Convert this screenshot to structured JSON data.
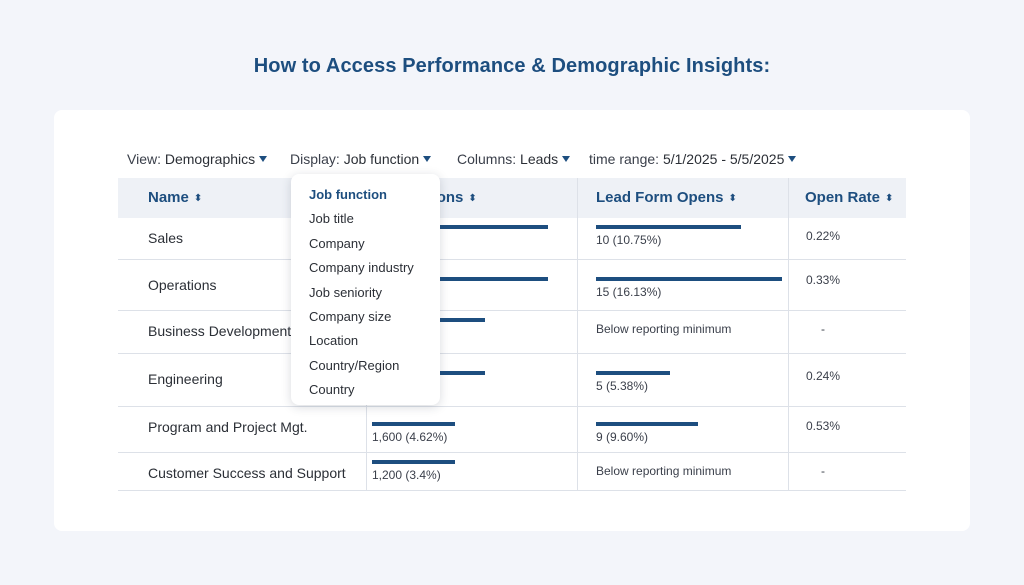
{
  "page_title": "How to Access Performance & Demographic Insights:",
  "toolbar": {
    "view_label": "View:",
    "view_value": "Demographics",
    "display_label": "Display:",
    "display_value": "Job function",
    "columns_label": "Columns:",
    "columns_value": "Leads",
    "time_range_label": "time range:",
    "time_range_value": "5/1/2025 - 5/5/2025"
  },
  "table": {
    "headers": {
      "name": "Name",
      "impressions": "Impressions",
      "lead_form_opens": "Lead Form Opens",
      "open_rate": "Open Rate"
    },
    "rows": [
      {
        "name": "Sales",
        "impressions_text": "…3%)",
        "impressions_bar": 0.95,
        "opens_text": "10 (10.75%)",
        "opens_bar": 0.78,
        "open_rate": "0.22%"
      },
      {
        "name": "Operations",
        "impressions_text": "…3%)",
        "impressions_bar": 0.95,
        "opens_text": "15 (16.13%)",
        "opens_bar": 1.0,
        "open_rate": "0.33%"
      },
      {
        "name": "Business Development",
        "impressions_text": "…23%)",
        "impressions_bar": 0.61,
        "opens_text": "Below reporting minimum",
        "opens_bar": 0,
        "open_rate": "-"
      },
      {
        "name": "Engineering",
        "impressions_text": "…72%)",
        "impressions_bar": 0.61,
        "opens_text": "5 (5.38%)",
        "opens_bar": 0.4,
        "open_rate": "0.24%"
      },
      {
        "name": "Program and Project Mgt.",
        "impressions_text": "1,600 (4.62%)",
        "impressions_bar": 0.45,
        "opens_text": "9 (9.60%)",
        "opens_bar": 0.55,
        "open_rate": "0.53%"
      },
      {
        "name": "Customer Success and Support",
        "impressions_text": "1,200 (3.4%)",
        "impressions_bar": 0.45,
        "opens_text": "Below reporting minimum",
        "opens_bar": 0,
        "open_rate": "-"
      }
    ]
  },
  "display_dropdown": {
    "selected": "Job function",
    "options": [
      "Job function",
      "Job title",
      "Company",
      "Company industry",
      "Job seniority",
      "Company size",
      "Location",
      "Country/Region",
      "Country"
    ]
  },
  "colors": {
    "accent": "#1d4e7f",
    "background": "#f3f5fa",
    "header_bg": "#eef1f6"
  },
  "icons": {
    "caret": "caret-down-icon",
    "sort": "sort-icon"
  }
}
